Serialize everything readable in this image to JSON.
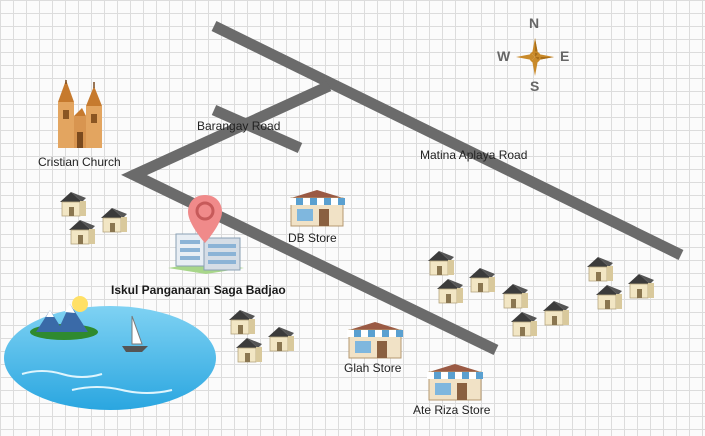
{
  "compass": {
    "north": "N",
    "south": "S",
    "east": "E",
    "west": "W"
  },
  "roads": {
    "barangay": "Barangay Road",
    "matina": "Matina Aplaya Road"
  },
  "places": {
    "church": "Cristian Church",
    "school": "Iskul Panganaran Saga Badjao",
    "db_store": "DB Store",
    "glah_store": "Glah Store",
    "ate_riza_store": "Ate Riza Store"
  },
  "colors": {
    "road": "#6b6b6b",
    "pin": "#f08a8a",
    "water": "#42b8ea",
    "house_wall": "#f2e6c4",
    "house_roof": "#3b3b3b",
    "store_roof": "#9a5a44",
    "awning": "#5aa0d0"
  },
  "icons": {
    "compass": "compass-rose-icon",
    "church": "church-icon",
    "school": "school-building-icon",
    "pin": "location-pin-icon",
    "lake": "lake-icon",
    "house": "house-icon",
    "store": "store-icon"
  }
}
